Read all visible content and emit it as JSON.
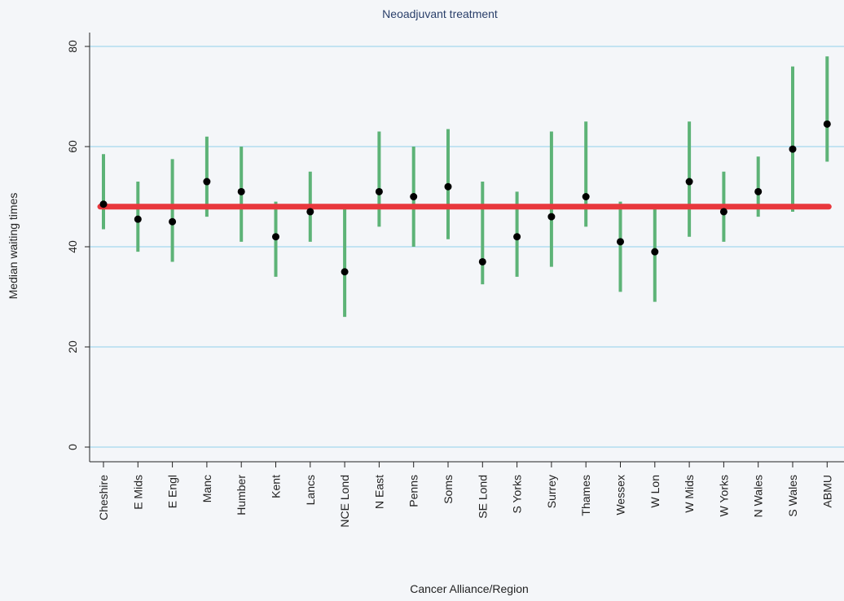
{
  "chart_data": {
    "type": "scatter",
    "title": "Neoadjuvant treatment",
    "xlabel": "Cancer Alliance/Region",
    "ylabel": "Median waiting times",
    "ylim": [
      -2,
      84
    ],
    "yticks": [
      0,
      20,
      40,
      60,
      80
    ],
    "grid": true,
    "legend": "none",
    "reference_line": {
      "value": 48,
      "color": "#e8383d"
    },
    "colors": {
      "interval": "#5db377",
      "point": "#000000",
      "grid": "#8fd0ea",
      "title": "#2a3f6a"
    },
    "categories": [
      "Cheshire",
      "E Mids",
      "E Engl",
      "Manc",
      "Humber",
      "Kent",
      "Lancs",
      "NCE Lond",
      "N East",
      "Penns",
      "Soms",
      "SE Lond",
      "S Yorks",
      "Surrey",
      "Thames",
      "Wessex",
      "W Lon",
      "W Mids",
      "W Yorks",
      "N Wales",
      "S Wales",
      "ABMU"
    ],
    "median": [
      48.5,
      45.5,
      45,
      53,
      51,
      42,
      47,
      35,
      51,
      50,
      52,
      37,
      42,
      46,
      50,
      41,
      39,
      53,
      47,
      51,
      59.5,
      64.5
    ],
    "lower": [
      43.5,
      39,
      37,
      46,
      41,
      34,
      41,
      26,
      44,
      40,
      41.5,
      32.5,
      34,
      36,
      44,
      31,
      29,
      42,
      41,
      46,
      47,
      57
    ],
    "upper": [
      58.5,
      53,
      57.5,
      62,
      60,
      49,
      55,
      48,
      63,
      60,
      63.5,
      53,
      51,
      63,
      65,
      49,
      48,
      65,
      55,
      58,
      76,
      78
    ]
  }
}
